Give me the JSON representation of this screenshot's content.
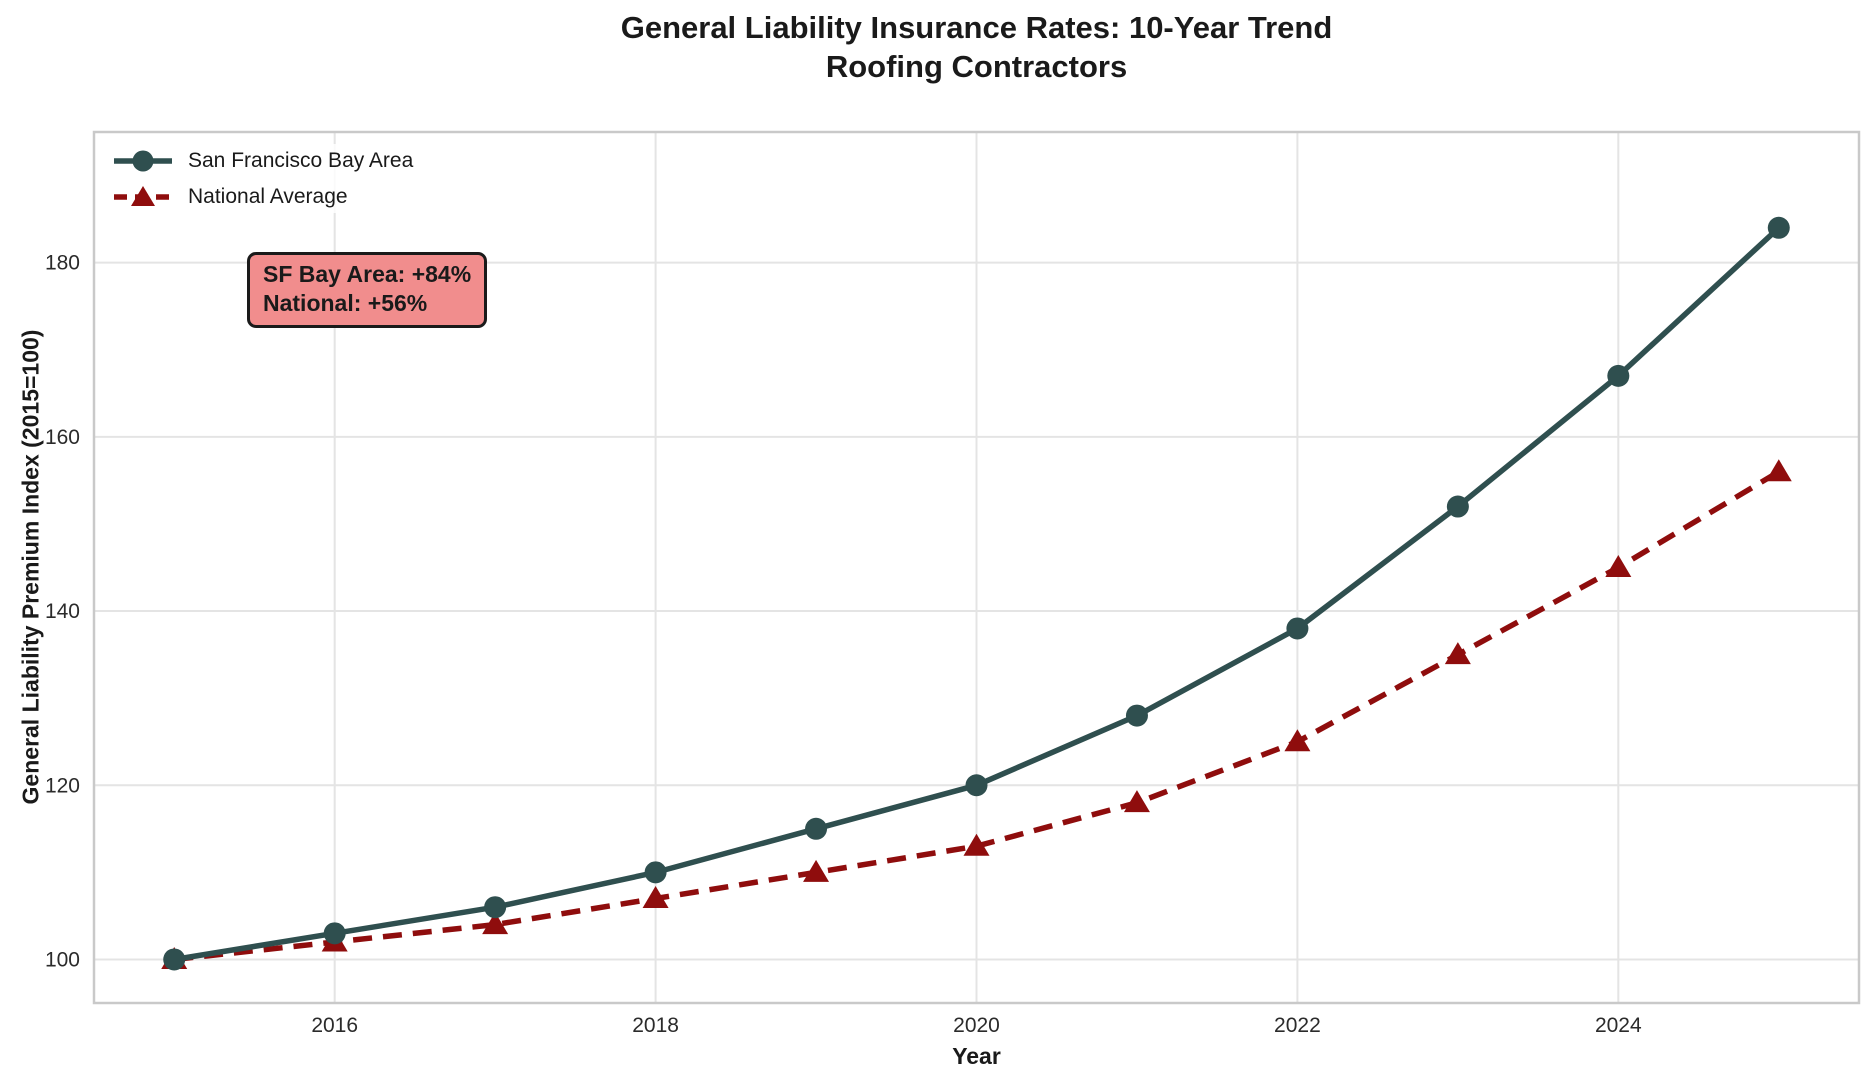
{
  "chart_data": {
    "type": "line",
    "title": "General Liability Insurance Rates: 10-Year Trend",
    "subtitle": "Roofing Contractors",
    "xlabel": "Year",
    "ylabel": "General Liability Premium Index (2015=100)",
    "x": [
      2015,
      2016,
      2017,
      2018,
      2019,
      2020,
      2021,
      2022,
      2023,
      2024,
      2025
    ],
    "series": [
      {
        "name": "San Francisco Bay Area",
        "color": "#2F4F4F",
        "marker": "circle",
        "linestyle": "solid",
        "values": [
          100,
          103,
          106,
          110,
          115,
          120,
          128,
          138,
          152,
          167,
          184
        ]
      },
      {
        "name": "National Average",
        "color": "#8F0D0D",
        "marker": "triangle",
        "linestyle": "dashed",
        "values": [
          100,
          102,
          104,
          107,
          110,
          113,
          118,
          125,
          135,
          145,
          156
        ]
      }
    ],
    "xticks": [
      2016,
      2018,
      2020,
      2022,
      2024
    ],
    "yticks": [
      100,
      120,
      140,
      160,
      180
    ],
    "xlim": [
      2014.5,
      2025.5
    ],
    "ylim": [
      95,
      195
    ],
    "grid": true,
    "legend_position": "upper left",
    "annotation": {
      "line1": "SF Bay Area: +84%",
      "line2": "National: +56%",
      "fill_color": "#F18D8D",
      "border_color": "#1a1a1a"
    },
    "style": {
      "grid_color": "#e4e4e4",
      "spine_color": "#c9c9c9",
      "tick_label_color": "#2b2b2b"
    }
  }
}
